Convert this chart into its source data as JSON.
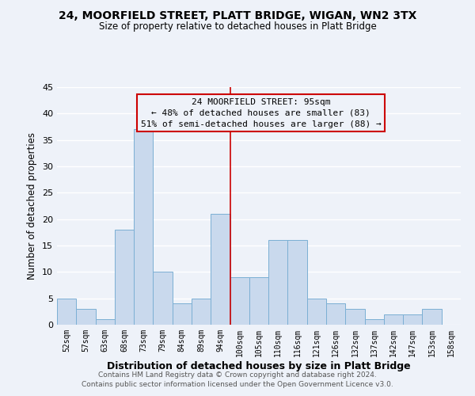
{
  "title": "24, MOORFIELD STREET, PLATT BRIDGE, WIGAN, WN2 3TX",
  "subtitle": "Size of property relative to detached houses in Platt Bridge",
  "xlabel": "Distribution of detached houses by size in Platt Bridge",
  "ylabel": "Number of detached properties",
  "bar_labels": [
    "52sqm",
    "57sqm",
    "63sqm",
    "68sqm",
    "73sqm",
    "79sqm",
    "84sqm",
    "89sqm",
    "94sqm",
    "100sqm",
    "105sqm",
    "110sqm",
    "116sqm",
    "121sqm",
    "126sqm",
    "132sqm",
    "137sqm",
    "142sqm",
    "147sqm",
    "153sqm",
    "158sqm"
  ],
  "bar_heights": [
    5,
    3,
    1,
    18,
    37,
    10,
    4,
    5,
    21,
    9,
    9,
    16,
    16,
    5,
    4,
    3,
    1,
    2,
    2,
    3,
    0
  ],
  "bar_color": "#c9d9ed",
  "bar_edgecolor": "#7bafd4",
  "ylim": [
    0,
    45
  ],
  "yticks": [
    0,
    5,
    10,
    15,
    20,
    25,
    30,
    35,
    40,
    45
  ],
  "vline_x": 8.5,
  "vline_color": "#cc0000",
  "annotation_title": "24 MOORFIELD STREET: 95sqm",
  "annotation_line1": "← 48% of detached houses are smaller (83)",
  "annotation_line2": "51% of semi-detached houses are larger (88) →",
  "annotation_box_edgecolor": "#cc0000",
  "footer_line1": "Contains HM Land Registry data © Crown copyright and database right 2024.",
  "footer_line2": "Contains public sector information licensed under the Open Government Licence v3.0.",
  "background_color": "#eef2f9",
  "grid_color": "#ffffff"
}
